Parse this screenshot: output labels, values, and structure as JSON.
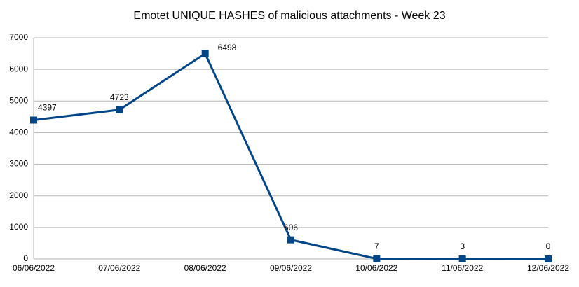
{
  "chart_data": {
    "type": "line",
    "title": "Emotet UNIQUE HASHES of malicious attachments - Week 23",
    "categories": [
      "06/06/2022",
      "07/06/2022",
      "08/06/2022",
      "09/06/2022",
      "10/06/2022",
      "11/06/2022",
      "12/06/2022"
    ],
    "values": [
      4397,
      4723,
      6498,
      606,
      7,
      3,
      0
    ],
    "color": "#004586",
    "ylim": [
      0,
      7000
    ],
    "yticks": [
      0,
      1000,
      2000,
      3000,
      4000,
      5000,
      6000,
      7000
    ],
    "grid": true
  }
}
